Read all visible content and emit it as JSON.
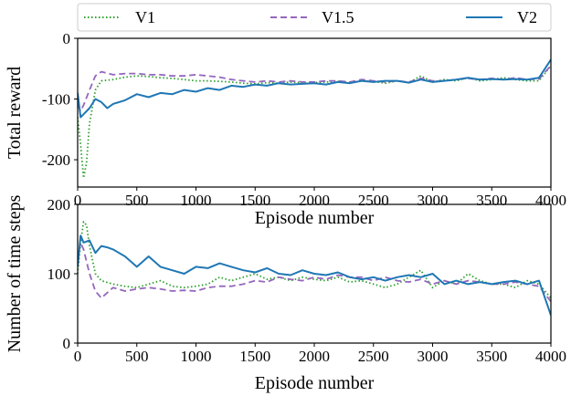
{
  "chart_data": [
    {
      "type": "line",
      "xlabel": "Episode number",
      "ylabel": "Total reward",
      "xlim": [
        0,
        4000
      ],
      "ylim": [
        -245,
        0
      ],
      "xticks": [
        0,
        500,
        1000,
        1500,
        2000,
        2500,
        3000,
        3500,
        4000
      ],
      "yticks": [
        0,
        -100,
        -200
      ],
      "grid": false,
      "series": [
        {
          "name": "V1",
          "color": "#2ca02c",
          "style": "dotted",
          "x": [
            0,
            25,
            50,
            75,
            100,
            150,
            200,
            300,
            400,
            500,
            600,
            700,
            800,
            900,
            1000,
            1100,
            1200,
            1300,
            1400,
            1500,
            1600,
            1700,
            1800,
            1900,
            2000,
            2100,
            2200,
            2300,
            2400,
            2500,
            2600,
            2700,
            2800,
            2900,
            3000,
            3100,
            3200,
            3300,
            3400,
            3500,
            3600,
            3700,
            3800,
            3900,
            4000
          ],
          "y": [
            -130,
            -175,
            -230,
            -205,
            -140,
            -85,
            -70,
            -68,
            -64,
            -62,
            -63,
            -65,
            -66,
            -68,
            -70,
            -70,
            -71,
            -72,
            -74,
            -75,
            -73,
            -74,
            -72,
            -73,
            -73,
            -72,
            -71,
            -73,
            -70,
            -71,
            -74,
            -70,
            -73,
            -62,
            -72,
            -68,
            -70,
            -65,
            -70,
            -68,
            -65,
            -68,
            -70,
            -70,
            -45
          ]
        },
        {
          "name": "V1.5",
          "color": "#9467bd",
          "style": "dashed",
          "x": [
            0,
            25,
            50,
            100,
            150,
            200,
            300,
            400,
            500,
            600,
            700,
            800,
            900,
            1000,
            1100,
            1200,
            1300,
            1400,
            1500,
            1600,
            1700,
            1800,
            1900,
            2000,
            2100,
            2200,
            2300,
            2400,
            2500,
            2600,
            2700,
            2800,
            2900,
            3000,
            3100,
            3200,
            3300,
            3400,
            3500,
            3600,
            3700,
            3800,
            3900,
            4000
          ],
          "y": [
            -110,
            -120,
            -110,
            -85,
            -62,
            -55,
            -60,
            -58,
            -58,
            -60,
            -60,
            -62,
            -62,
            -60,
            -62,
            -64,
            -68,
            -70,
            -72,
            -70,
            -72,
            -70,
            -72,
            -72,
            -70,
            -70,
            -72,
            -68,
            -70,
            -72,
            -70,
            -72,
            -66,
            -70,
            -70,
            -68,
            -66,
            -68,
            -66,
            -68,
            -65,
            -68,
            -67,
            -45
          ]
        },
        {
          "name": "V2",
          "color": "#1f77b4",
          "style": "solid",
          "x": [
            0,
            25,
            50,
            100,
            150,
            200,
            250,
            300,
            400,
            500,
            600,
            700,
            800,
            900,
            1000,
            1100,
            1200,
            1300,
            1400,
            1500,
            1600,
            1700,
            1800,
            1900,
            2000,
            2100,
            2200,
            2300,
            2400,
            2500,
            2600,
            2700,
            2800,
            2900,
            3000,
            3100,
            3200,
            3300,
            3400,
            3500,
            3600,
            3700,
            3800,
            3900,
            4000
          ],
          "y": [
            -90,
            -130,
            -125,
            -115,
            -100,
            -105,
            -115,
            -108,
            -102,
            -92,
            -97,
            -90,
            -92,
            -85,
            -88,
            -82,
            -85,
            -78,
            -80,
            -76,
            -78,
            -74,
            -76,
            -75,
            -74,
            -76,
            -72,
            -74,
            -70,
            -72,
            -70,
            -70,
            -73,
            -68,
            -72,
            -70,
            -68,
            -65,
            -68,
            -67,
            -68,
            -67,
            -68,
            -65,
            -35
          ]
        }
      ]
    },
    {
      "type": "line",
      "xlabel": "Episode number",
      "ylabel": "Number of time steps",
      "xlim": [
        0,
        4000
      ],
      "ylim": [
        0,
        200
      ],
      "xticks": [
        0,
        500,
        1000,
        1500,
        2000,
        2500,
        3000,
        3500,
        4000
      ],
      "yticks": [
        0,
        100,
        200
      ],
      "grid": false,
      "series": [
        {
          "name": "V1",
          "color": "#2ca02c",
          "style": "dotted",
          "x": [
            0,
            25,
            50,
            75,
            100,
            150,
            200,
            300,
            400,
            500,
            600,
            700,
            800,
            900,
            1000,
            1100,
            1200,
            1300,
            1400,
            1500,
            1600,
            1700,
            1800,
            1900,
            2000,
            2100,
            2200,
            2300,
            2400,
            2500,
            2600,
            2700,
            2800,
            2900,
            3000,
            3100,
            3200,
            3300,
            3400,
            3500,
            3600,
            3700,
            3800,
            3900,
            4000
          ],
          "y": [
            100,
            145,
            175,
            170,
            140,
            100,
            90,
            85,
            82,
            80,
            85,
            90,
            82,
            80,
            82,
            85,
            95,
            90,
            95,
            100,
            92,
            95,
            90,
            95,
            92,
            90,
            95,
            88,
            90,
            85,
            80,
            85,
            95,
            105,
            80,
            90,
            85,
            100,
            90,
            85,
            85,
            80,
            90,
            85,
            65
          ]
        },
        {
          "name": "V1.5",
          "color": "#9467bd",
          "style": "dashed",
          "x": [
            0,
            25,
            50,
            100,
            150,
            200,
            300,
            400,
            500,
            600,
            700,
            800,
            900,
            1000,
            1100,
            1200,
            1300,
            1400,
            1500,
            1600,
            1700,
            1800,
            1900,
            2000,
            2100,
            2200,
            2300,
            2400,
            2500,
            2600,
            2700,
            2800,
            2900,
            3000,
            3100,
            3200,
            3300,
            3400,
            3500,
            3600,
            3700,
            3800,
            3900,
            4000
          ],
          "y": [
            120,
            145,
            135,
            100,
            75,
            65,
            80,
            75,
            78,
            80,
            78,
            75,
            76,
            75,
            80,
            82,
            82,
            85,
            90,
            88,
            95,
            92,
            90,
            95,
            92,
            98,
            95,
            95,
            90,
            95,
            90,
            88,
            92,
            85,
            90,
            85,
            90,
            88,
            85,
            85,
            88,
            85,
            82,
            60
          ]
        },
        {
          "name": "V2",
          "color": "#1f77b4",
          "style": "solid",
          "x": [
            0,
            25,
            50,
            100,
            150,
            200,
            250,
            300,
            400,
            500,
            600,
            700,
            800,
            900,
            1000,
            1100,
            1200,
            1300,
            1400,
            1500,
            1600,
            1700,
            1800,
            1900,
            2000,
            2100,
            2200,
            2300,
            2400,
            2500,
            2600,
            2700,
            2800,
            2900,
            3000,
            3100,
            3200,
            3300,
            3400,
            3500,
            3600,
            3700,
            3800,
            3900,
            4000
          ],
          "y": [
            110,
            155,
            145,
            148,
            130,
            140,
            138,
            135,
            125,
            110,
            125,
            110,
            105,
            100,
            110,
            108,
            115,
            110,
            105,
            102,
            108,
            100,
            98,
            105,
            100,
            98,
            102,
            95,
            92,
            95,
            90,
            95,
            98,
            95,
            100,
            85,
            90,
            85,
            88,
            85,
            88,
            90,
            85,
            90,
            40
          ]
        }
      ]
    }
  ],
  "legend": {
    "items": [
      {
        "name": "V1",
        "color": "#2ca02c",
        "style": "dotted"
      },
      {
        "name": "V1.5",
        "color": "#9467bd",
        "style": "dashed"
      },
      {
        "name": "V2",
        "color": "#1f77b4",
        "style": "solid"
      }
    ]
  }
}
